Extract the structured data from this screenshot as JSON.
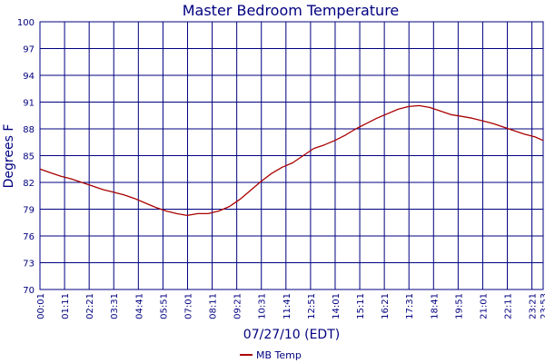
{
  "chart_data": {
    "type": "line",
    "title": "Master Bedroom Temperature",
    "xlabel": "07/27/10 (EDT)",
    "ylabel": "Degrees F",
    "ylim": [
      70,
      100
    ],
    "yticks": [
      70,
      73,
      76,
      79,
      82,
      85,
      88,
      91,
      94,
      97,
      100
    ],
    "xlim": [
      "00:01",
      "23:53"
    ],
    "xticks": [
      "00:01",
      "01:11",
      "02:21",
      "03:31",
      "04:41",
      "05:51",
      "07:01",
      "08:11",
      "09:21",
      "10:31",
      "11:41",
      "12:51",
      "14:01",
      "15:11",
      "16:21",
      "17:31",
      "18:41",
      "19:51",
      "21:01",
      "22:11",
      "23:21",
      "23:53"
    ],
    "grid": true,
    "legend": "bottom",
    "series": [
      {
        "name": "MB Temp",
        "color": "#aa0000",
        "x": [
          "00:01",
          "00:30",
          "01:00",
          "01:30",
          "02:00",
          "02:30",
          "03:00",
          "03:30",
          "04:00",
          "04:30",
          "05:00",
          "05:30",
          "06:00",
          "06:30",
          "07:00",
          "07:30",
          "08:00",
          "08:30",
          "09:00",
          "09:30",
          "10:00",
          "10:30",
          "11:00",
          "11:30",
          "12:00",
          "12:30",
          "13:00",
          "13:30",
          "14:00",
          "14:30",
          "15:00",
          "15:30",
          "16:00",
          "16:30",
          "17:00",
          "17:30",
          "18:00",
          "18:30",
          "19:00",
          "19:30",
          "20:00",
          "20:30",
          "21:00",
          "21:30",
          "22:00",
          "22:30",
          "23:00",
          "23:30",
          "23:53"
        ],
        "values": [
          83.5,
          83.1,
          82.7,
          82.4,
          82.0,
          81.6,
          81.2,
          80.9,
          80.6,
          80.2,
          79.7,
          79.2,
          78.8,
          78.5,
          78.3,
          78.5,
          78.5,
          78.8,
          79.3,
          80.1,
          81.1,
          82.1,
          83.0,
          83.7,
          84.2,
          85.0,
          85.8,
          86.2,
          86.7,
          87.3,
          88.0,
          88.6,
          89.2,
          89.7,
          90.2,
          90.5,
          90.6,
          90.4,
          90.0,
          89.6,
          89.4,
          89.2,
          88.9,
          88.6,
          88.2,
          87.8,
          87.4,
          87.1,
          86.7
        ]
      }
    ]
  }
}
